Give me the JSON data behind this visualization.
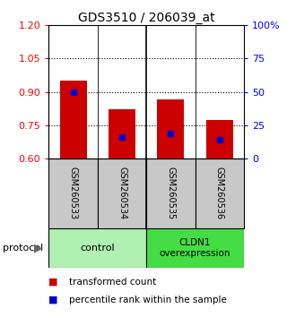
{
  "title": "GDS3510 / 206039_at",
  "samples": [
    "GSM260533",
    "GSM260534",
    "GSM260535",
    "GSM260536"
  ],
  "bar_values": [
    0.95,
    0.82,
    0.865,
    0.775
  ],
  "bar_bottom": 0.6,
  "percentile_values": [
    0.9,
    0.695,
    0.715,
    0.685
  ],
  "ylim": [
    0.6,
    1.2
  ],
  "y_ticks_left": [
    0.6,
    0.75,
    0.9,
    1.05,
    1.2
  ],
  "y_ticks_right": [
    0,
    25,
    50,
    75,
    100
  ],
  "hlines": [
    0.75,
    0.9,
    1.05
  ],
  "bar_color": "#cc0000",
  "percentile_color": "#0000cc",
  "bar_width": 0.55,
  "group_control_color": "#b0f0b0",
  "group_cldn1_color": "#44dd44",
  "protocol_label": "protocol",
  "legend_items": [
    {
      "color": "#cc0000",
      "label": "transformed count"
    },
    {
      "color": "#0000cc",
      "label": "percentile rank within the sample"
    }
  ],
  "background_color": "#ffffff",
  "sample_box_color": "#c8c8c8",
  "title_fontsize": 10,
  "tick_fontsize": 8,
  "sample_fontsize": 7,
  "legend_fontsize": 7.5,
  "group_fontsize": 8
}
